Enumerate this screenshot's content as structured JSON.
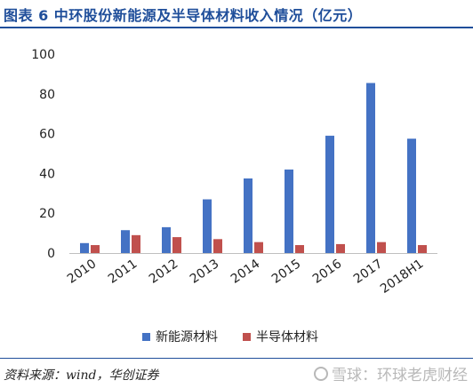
{
  "header": {
    "title": "图表 6   中环股份新能源及半导体材料收入情况（亿元）"
  },
  "source": {
    "text": "资料来源：wind，华创证券"
  },
  "watermark": {
    "text": "雪球：环球老虎财经",
    "icon": "snowball-icon"
  },
  "colors": {
    "accent": "#1f4e9a",
    "series1": "#4472c4",
    "series2": "#c0504d"
  },
  "chart_data": {
    "type": "bar",
    "categories": [
      "2010",
      "2011",
      "2012",
      "2013",
      "2014",
      "2015",
      "2016",
      "2017",
      "2018H1"
    ],
    "series": [
      {
        "name": "新能源材料",
        "values": [
          5,
          11.5,
          13,
          27,
          37.5,
          42,
          59,
          85.5,
          57.5
        ]
      },
      {
        "name": "半导体材料",
        "values": [
          4,
          9,
          8,
          7,
          5.5,
          4,
          4.5,
          5.5,
          4
        ]
      }
    ],
    "ylim": [
      0,
      100
    ],
    "yticks": [
      0,
      20,
      40,
      60,
      80,
      100
    ],
    "grid": false,
    "legend": "bottom",
    "xlabel": "",
    "ylabel": ""
  }
}
